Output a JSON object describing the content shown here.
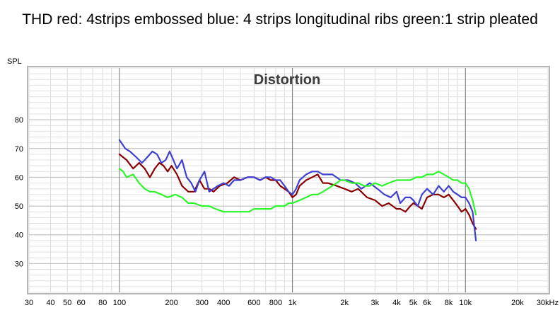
{
  "page": {
    "title": "THD red: 4strips embossed blue: 4 strips longitudinal ribs green:1 strip pleated"
  },
  "chart_data": {
    "type": "line",
    "title": "Distortion",
    "ylabel": "SPL",
    "xlabel": "",
    "xscale": "log",
    "xlim": [
      30,
      30000
    ],
    "ylim": [
      20,
      98
    ],
    "grid": true,
    "y_ticks": [
      30,
      40,
      50,
      60,
      70,
      80
    ],
    "x_ticks": [
      {
        "v": 30,
        "label": "30"
      },
      {
        "v": 40,
        "label": "40"
      },
      {
        "v": 50,
        "label": "50"
      },
      {
        "v": 60,
        "label": "60"
      },
      {
        "v": 80,
        "label": "80"
      },
      {
        "v": 100,
        "label": "100"
      },
      {
        "v": 200,
        "label": "200"
      },
      {
        "v": 300,
        "label": "300"
      },
      {
        "v": 400,
        "label": "400"
      },
      {
        "v": 600,
        "label": "600"
      },
      {
        "v": 800,
        "label": "800"
      },
      {
        "v": 1000,
        "label": "1k"
      },
      {
        "v": 2000,
        "label": "2k"
      },
      {
        "v": 3000,
        "label": "3k"
      },
      {
        "v": 4000,
        "label": "4k"
      },
      {
        "v": 5000,
        "label": "5k"
      },
      {
        "v": 6000,
        "label": "6k"
      },
      {
        "v": 8000,
        "label": "8k"
      },
      {
        "v": 10000,
        "label": "10k"
      },
      {
        "v": 20000,
        "label": "20k"
      },
      {
        "v": 30000,
        "label": "30kHz"
      }
    ],
    "series": [
      {
        "color": "#8b0000",
        "x": [
          100,
          110,
          120,
          130,
          140,
          150,
          160,
          170,
          180,
          190,
          200,
          215,
          230,
          250,
          270,
          290,
          310,
          330,
          350,
          380,
          420,
          460,
          500,
          550,
          600,
          650,
          700,
          750,
          800,
          850,
          900,
          950,
          1000,
          1050,
          1100,
          1200,
          1300,
          1400,
          1500,
          1600,
          1800,
          2000,
          2200,
          2400,
          2700,
          3000,
          3300,
          3600,
          4000,
          4200,
          4500,
          4800,
          5000,
          5300,
          5600,
          6000,
          6500,
          7000,
          7500,
          8000,
          8500,
          9000,
          9500,
          10000,
          10500,
          11000,
          11500
        ],
        "values": [
          68,
          66,
          63,
          65,
          63,
          60,
          63,
          65,
          64,
          62,
          64,
          61,
          57,
          55,
          55,
          59,
          56,
          56,
          55,
          57,
          58,
          60,
          59,
          60,
          60,
          59,
          60,
          59,
          59,
          57,
          56,
          55,
          53,
          54,
          57,
          59,
          60,
          61,
          58,
          58,
          57,
          56,
          55,
          56,
          53,
          52,
          50,
          51,
          49,
          49,
          48,
          50,
          51,
          50,
          49,
          53,
          54,
          54,
          53,
          54,
          52,
          50,
          48,
          49,
          47,
          44,
          42
        ]
      },
      {
        "color": "#3f3fd0",
        "x": [
          100,
          108,
          115,
          125,
          135,
          145,
          155,
          165,
          175,
          185,
          195,
          205,
          215,
          230,
          245,
          260,
          275,
          290,
          310,
          330,
          350,
          370,
          400,
          430,
          460,
          500,
          550,
          600,
          650,
          700,
          750,
          800,
          850,
          900,
          950,
          1000,
          1050,
          1100,
          1200,
          1300,
          1400,
          1500,
          1700,
          1900,
          2100,
          2300,
          2500,
          2800,
          3100,
          3400,
          3700,
          4000,
          4200,
          4500,
          4800,
          5000,
          5300,
          5600,
          6000,
          6500,
          7000,
          7500,
          8000,
          8500,
          9000,
          9500,
          10000,
          10500,
          11000,
          11500
        ],
        "values": [
          73,
          70,
          69,
          67,
          65,
          67,
          69,
          68,
          65,
          66,
          69,
          66,
          63,
          66,
          60,
          58,
          55,
          59,
          62,
          55,
          56,
          57,
          58,
          57,
          59,
          59,
          60,
          60,
          59,
          60,
          60,
          59,
          59,
          57,
          55,
          54,
          56,
          59,
          61,
          62,
          62,
          61,
          61,
          59,
          59,
          58,
          56,
          58,
          56,
          54,
          53,
          55,
          51,
          53,
          53,
          52,
          50,
          54,
          56,
          54,
          57,
          55,
          57,
          55,
          54,
          53,
          53,
          51,
          48,
          38
        ]
      },
      {
        "color": "#2cf52c",
        "x": [
          100,
          105,
          110,
          120,
          130,
          140,
          150,
          160,
          175,
          190,
          210,
          230,
          250,
          270,
          300,
          330,
          360,
          400,
          440,
          480,
          520,
          560,
          600,
          650,
          700,
          750,
          800,
          850,
          900,
          950,
          1000,
          1100,
          1200,
          1300,
          1400,
          1500,
          1600,
          1700,
          1800,
          1900,
          2000,
          2200,
          2400,
          2600,
          2800,
          3000,
          3300,
          3600,
          4000,
          4400,
          4800,
          5200,
          5600,
          6000,
          6500,
          7000,
          7500,
          8000,
          8500,
          9000,
          9500,
          10000,
          10500,
          11000,
          11500
        ],
        "values": [
          63,
          62,
          60,
          61,
          58,
          56,
          55,
          55,
          54,
          53,
          54,
          53,
          51,
          51,
          50,
          50,
          49,
          48,
          48,
          48,
          48,
          48,
          49,
          49,
          49,
          49,
          50,
          50,
          50,
          51,
          51,
          52,
          53,
          54,
          54,
          55,
          56,
          57,
          58,
          59,
          59,
          58,
          58,
          57,
          57,
          58,
          57,
          58,
          59,
          59,
          59,
          60,
          60,
          61,
          61,
          62,
          61,
          60,
          59,
          59,
          58,
          58,
          56,
          52,
          47
        ]
      }
    ]
  }
}
